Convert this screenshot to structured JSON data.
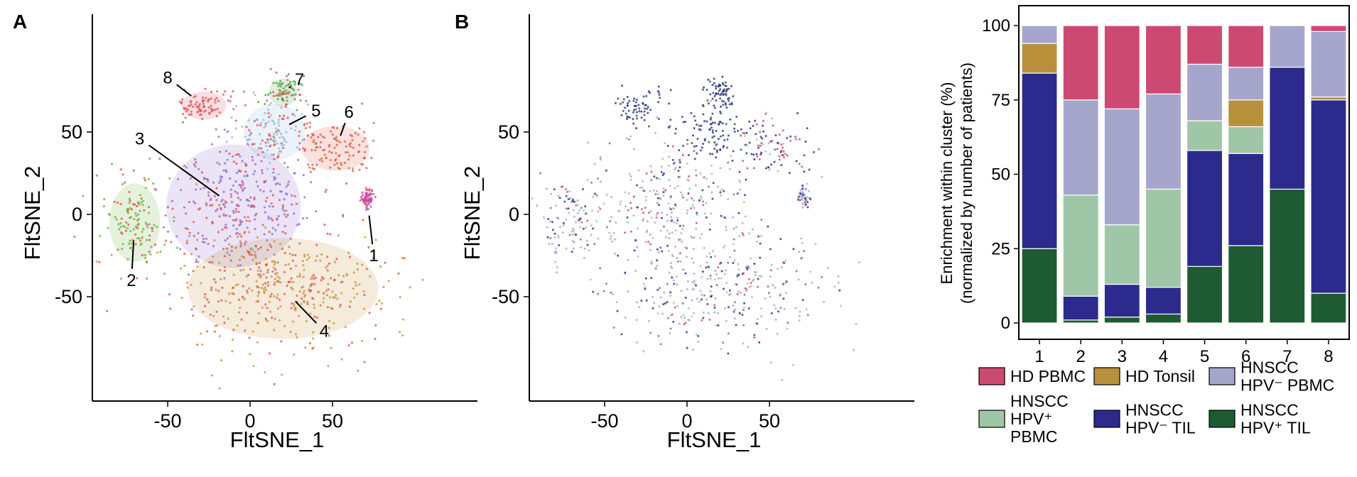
{
  "chart_data": [
    {
      "panel": "A",
      "type": "scatter",
      "xlabel": "FltSNE_1",
      "ylabel": "FltSNE_2",
      "xticks": [
        -50,
        0,
        50
      ],
      "yticks": [
        -50,
        0,
        50
      ],
      "xlim": [
        -95,
        100
      ],
      "ylim": [
        -97,
        93
      ],
      "clusters": [
        {
          "label": "1",
          "center": [
            71,
            10
          ],
          "spread": [
            2,
            3
          ],
          "color": "#c040c0",
          "callout": [
            75,
            -25
          ]
        },
        {
          "label": "2",
          "center": [
            -70,
            -5
          ],
          "spread": [
            9,
            14
          ],
          "color": "#6bb33a",
          "callout": [
            -72,
            -40
          ]
        },
        {
          "label": "3",
          "center": [
            -10,
            5
          ],
          "spread": [
            24,
            22
          ],
          "color": "#8c6ccc",
          "callout": [
            -67,
            46
          ]
        },
        {
          "label": "4",
          "center": [
            20,
            -45
          ],
          "spread": [
            34,
            18
          ],
          "color": "#c8903a",
          "callout": [
            45,
            -71
          ]
        },
        {
          "label": "5",
          "center": [
            15,
            50
          ],
          "spread": [
            11,
            10
          ],
          "color": "#90b8e0",
          "callout": [
            40,
            63
          ]
        },
        {
          "label": "6",
          "center": [
            52,
            40
          ],
          "spread": [
            12,
            8
          ],
          "color": "#e06040",
          "callout": [
            60,
            62
          ]
        },
        {
          "label": "7",
          "center": [
            20,
            74
          ],
          "spread": [
            5,
            5
          ],
          "color": "#4aa040",
          "callout": [
            30,
            82
          ]
        },
        {
          "label": "8",
          "center": [
            -28,
            66
          ],
          "spread": [
            8,
            5
          ],
          "color": "#e05060",
          "callout": [
            -50,
            83
          ]
        }
      ]
    },
    {
      "panel": "B",
      "type": "scatter",
      "xlabel": "FltSNE_1",
      "ylabel": "FltSNE_2",
      "xticks": [
        -50,
        0,
        50
      ],
      "yticks": [
        -50,
        0,
        50
      ],
      "xlim": [
        -95,
        100
      ],
      "ylim": [
        -97,
        93
      ]
    },
    {
      "type": "bar",
      "stacked": true,
      "ylabel": [
        "Enrichment within cluster (%)",
        "(normalized by number of patients)"
      ],
      "ylim": [
        0,
        100
      ],
      "yticks": [
        0,
        25,
        50,
        75,
        100
      ],
      "categories": [
        "1",
        "2",
        "3",
        "4",
        "5",
        "6",
        "7",
        "8"
      ],
      "series": [
        {
          "name": "HNSCC HPV+ TIL",
          "color": "#1e5a32",
          "values": [
            25,
            1,
            2,
            3,
            19,
            26,
            45,
            10
          ]
        },
        {
          "name": "HNSCC HPV− TIL",
          "color": "#2c2a8c",
          "values": [
            59,
            8,
            11,
            9,
            39,
            31,
            41,
            65
          ]
        },
        {
          "name": "HNSCC HPV+ PBMC",
          "color": "#9fc6a6",
          "values": [
            0,
            34,
            20,
            33,
            10,
            9,
            0,
            0
          ]
        },
        {
          "name": "HD Tonsil",
          "color": "#b8903c",
          "values": [
            10,
            0,
            0,
            0,
            0,
            9,
            0,
            1
          ]
        },
        {
          "name": "HNSCC HPV− PBMC",
          "color": "#a6a6cc",
          "values": [
            6,
            32,
            39,
            32,
            19,
            11,
            14,
            22
          ]
        },
        {
          "name": "HD PBMC",
          "color": "#cc4a72",
          "values": [
            0,
            25,
            28,
            23,
            13,
            14,
            0,
            2
          ]
        }
      ]
    }
  ],
  "panel_labels": {
    "a": "A",
    "b": "B"
  },
  "axis_text": {
    "a_xlabel": "FltSNE_1",
    "a_ylabel": "FltSNE_2",
    "b_xlabel": "FltSNE_1",
    "b_ylabel": "FltSNE_2",
    "bar_ylabel_line1": "Enrichment within cluster (%)",
    "bar_ylabel_line2": "(normalized by number of patients)"
  },
  "legend": [
    {
      "lines": [
        "HD PBMC"
      ],
      "color": "#cc4a72"
    },
    {
      "lines": [
        "HD Tonsil"
      ],
      "color": "#b8903c"
    },
    {
      "lines": [
        "HNSCC",
        "HPV⁻ PBMC"
      ],
      "color": "#a6a6cc"
    },
    {
      "lines": [
        "HNSCC",
        "HPV⁺",
        "PBMC"
      ],
      "color": "#9fc6a6"
    },
    {
      "lines": [
        "HNSCC",
        "HPV⁻ TIL"
      ],
      "color": "#2c2a8c"
    },
    {
      "lines": [
        "HNSCC",
        "HPV⁺ TIL"
      ],
      "color": "#1e5a32"
    }
  ]
}
